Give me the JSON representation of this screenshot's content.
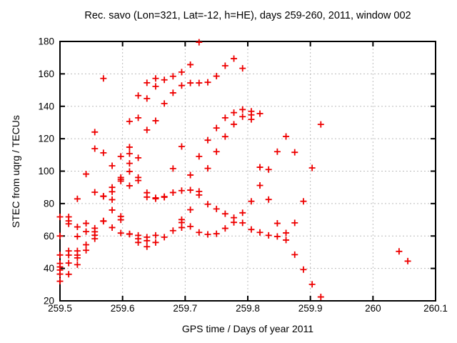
{
  "page": {
    "background": "#ffffff"
  },
  "chart_data": {
    "type": "scatter",
    "title": "Rec. savo (Lon=321, Lat=-12, h=HE), days 259-260, 2011, window 002",
    "xlabel": "GPS time / Days of year 2011",
    "ylabel": "STEC from uqrg / TECUs",
    "xlim": [
      259.5,
      260.1
    ],
    "ylim": [
      20,
      180
    ],
    "xticks": [
      259.5,
      259.6,
      259.7,
      259.8,
      259.9,
      260.0,
      260.1
    ],
    "xtick_labels": [
      "259.5",
      "259.6",
      "259.7",
      "259.8",
      "259.9",
      "260",
      "260.1"
    ],
    "yticks": [
      20,
      40,
      60,
      80,
      100,
      120,
      140,
      160,
      180
    ],
    "ytick_labels": [
      "20",
      "40",
      "60",
      "80",
      "100",
      "120",
      "140",
      "160",
      "180"
    ],
    "grid": true,
    "legend": false,
    "marker": {
      "shape": "plus",
      "color": "#ee0000",
      "size": 9,
      "stroke_width": 1.8
    },
    "axis_color": "#000000",
    "grid_color": "#bbbbbb",
    "series": [
      {
        "name": "STEC from uqrg",
        "points": [
          [
            259.5,
            71.8
          ],
          [
            259.5,
            60.0
          ],
          [
            259.5,
            48.3
          ],
          [
            259.5,
            43.1
          ],
          [
            259.5,
            40.9
          ],
          [
            259.5,
            39.0
          ],
          [
            259.5,
            36.5
          ],
          [
            259.5,
            32.1
          ],
          [
            259.5139,
            71.8
          ],
          [
            259.5139,
            69.3
          ],
          [
            259.5139,
            67.5
          ],
          [
            259.5139,
            50.8
          ],
          [
            259.5139,
            48.2
          ],
          [
            259.5139,
            43.3
          ],
          [
            259.5139,
            36.4
          ],
          [
            259.5278,
            82.9
          ],
          [
            259.5278,
            65.6
          ],
          [
            259.5278,
            59.7
          ],
          [
            259.5278,
            50.8
          ],
          [
            259.5278,
            48.2
          ],
          [
            259.5278,
            46.5
          ],
          [
            259.5278,
            42.3
          ],
          [
            259.5417,
            98.2
          ],
          [
            259.5417,
            67.8
          ],
          [
            259.5417,
            62.7
          ],
          [
            259.5417,
            54.6
          ],
          [
            259.5417,
            51.2
          ],
          [
            259.5556,
            124.1
          ],
          [
            259.5556,
            113.9
          ],
          [
            259.5556,
            87.0
          ],
          [
            259.5556,
            64.8
          ],
          [
            259.5556,
            62.6
          ],
          [
            259.5556,
            60.5
          ],
          [
            259.5556,
            58.3
          ],
          [
            259.5694,
            157.2
          ],
          [
            259.5694,
            111.3
          ],
          [
            259.5694,
            84.6
          ],
          [
            259.5694,
            84.4
          ],
          [
            259.5694,
            69.3
          ],
          [
            259.5694,
            69.1
          ],
          [
            259.5833,
            103.3
          ],
          [
            259.5833,
            90.0
          ],
          [
            259.5833,
            87.3
          ],
          [
            259.5833,
            82.4
          ],
          [
            259.5833,
            76.0
          ],
          [
            259.5833,
            65.2
          ],
          [
            259.5972,
            109.1
          ],
          [
            259.5972,
            96.1
          ],
          [
            259.5972,
            95.0
          ],
          [
            259.5972,
            93.9
          ],
          [
            259.5972,
            72.1
          ],
          [
            259.5972,
            70.0
          ],
          [
            259.5972,
            61.8
          ],
          [
            259.6111,
            130.7
          ],
          [
            259.6111,
            114.8
          ],
          [
            259.6111,
            110.8
          ],
          [
            259.6111,
            104.8
          ],
          [
            259.6111,
            99.8
          ],
          [
            259.6111,
            91.0
          ],
          [
            259.6111,
            61.3
          ],
          [
            259.6111,
            61.1
          ],
          [
            259.625,
            146.6
          ],
          [
            259.625,
            132.9
          ],
          [
            259.625,
            108.2
          ],
          [
            259.625,
            96.1
          ],
          [
            259.625,
            94.2
          ],
          [
            259.625,
            60.4
          ],
          [
            259.625,
            58.3
          ],
          [
            259.625,
            56.0
          ],
          [
            259.6389,
            154.5
          ],
          [
            259.6389,
            144.8
          ],
          [
            259.6389,
            125.4
          ],
          [
            259.6389,
            86.7
          ],
          [
            259.6389,
            84.0
          ],
          [
            259.6389,
            59.3
          ],
          [
            259.6389,
            57.1
          ],
          [
            259.6389,
            53.4
          ],
          [
            259.6528,
            157.2
          ],
          [
            259.6528,
            152.3
          ],
          [
            259.6528,
            131.1
          ],
          [
            259.6528,
            83.5
          ],
          [
            259.6528,
            83.0
          ],
          [
            259.6528,
            60.4
          ],
          [
            259.6528,
            56.0
          ],
          [
            259.6667,
            156.3
          ],
          [
            259.6667,
            141.7
          ],
          [
            259.6667,
            84.3
          ],
          [
            259.6667,
            83.9
          ],
          [
            259.6667,
            59.3
          ],
          [
            259.6806,
            158.5
          ],
          [
            259.6806,
            148.3
          ],
          [
            259.6806,
            101.6
          ],
          [
            259.6806,
            86.8
          ],
          [
            259.6806,
            63.3
          ],
          [
            259.6944,
            161.1
          ],
          [
            259.6944,
            152.8
          ],
          [
            259.6944,
            115.2
          ],
          [
            259.6944,
            88.0
          ],
          [
            259.6944,
            70.1
          ],
          [
            259.6944,
            68.3
          ],
          [
            259.6944,
            65.2
          ],
          [
            259.7083,
            165.7
          ],
          [
            259.7083,
            154.4
          ],
          [
            259.7083,
            97.6
          ],
          [
            259.7083,
            88.3
          ],
          [
            259.7083,
            76.2
          ],
          [
            259.7083,
            65.9
          ],
          [
            259.7222,
            179.5
          ],
          [
            259.7222,
            154.4
          ],
          [
            259.7222,
            109.1
          ],
          [
            259.7222,
            87.5
          ],
          [
            259.7222,
            85.3
          ],
          [
            259.7222,
            62.2
          ],
          [
            259.7361,
            154.8
          ],
          [
            259.7361,
            119.1
          ],
          [
            259.7361,
            101.7
          ],
          [
            259.7361,
            79.6
          ],
          [
            259.7361,
            61.0
          ],
          [
            259.75,
            158.6
          ],
          [
            259.75,
            126.6
          ],
          [
            259.75,
            112.0
          ],
          [
            259.75,
            76.7
          ],
          [
            259.75,
            61.4
          ],
          [
            259.7639,
            165.0
          ],
          [
            259.7639,
            132.9
          ],
          [
            259.7639,
            121.3
          ],
          [
            259.7639,
            73.7
          ],
          [
            259.7639,
            64.7
          ],
          [
            259.7778,
            169.4
          ],
          [
            259.7778,
            136.1
          ],
          [
            259.7778,
            128.9
          ],
          [
            259.7778,
            71.3
          ],
          [
            259.7778,
            68.4
          ],
          [
            259.7917,
            163.4
          ],
          [
            259.7917,
            138.0
          ],
          [
            259.7917,
            133.6
          ],
          [
            259.7917,
            74.3
          ],
          [
            259.7917,
            68.1
          ],
          [
            259.8056,
            136.9
          ],
          [
            259.8056,
            134.7
          ],
          [
            259.8056,
            131.9
          ],
          [
            259.8056,
            81.4
          ],
          [
            259.8056,
            64.0
          ],
          [
            259.8194,
            135.5
          ],
          [
            259.8194,
            102.4
          ],
          [
            259.8194,
            91.2
          ],
          [
            259.8194,
            62.2
          ],
          [
            259.8333,
            101.0
          ],
          [
            259.8333,
            82.5
          ],
          [
            259.8333,
            60.4
          ],
          [
            259.8472,
            112.0
          ],
          [
            259.8472,
            67.8
          ],
          [
            259.8472,
            59.7
          ],
          [
            259.8611,
            121.4
          ],
          [
            259.8611,
            61.9
          ],
          [
            259.8611,
            57.5
          ],
          [
            259.875,
            111.6
          ],
          [
            259.875,
            68.1
          ],
          [
            259.875,
            48.5
          ],
          [
            259.8889,
            81.4
          ],
          [
            259.8889,
            39.3
          ],
          [
            259.9028,
            102.0
          ],
          [
            259.9028,
            30.2
          ],
          [
            259.9167,
            128.8
          ],
          [
            259.9167,
            22.4
          ],
          [
            260.0417,
            50.5
          ],
          [
            260.0556,
            44.5
          ]
        ]
      }
    ]
  }
}
